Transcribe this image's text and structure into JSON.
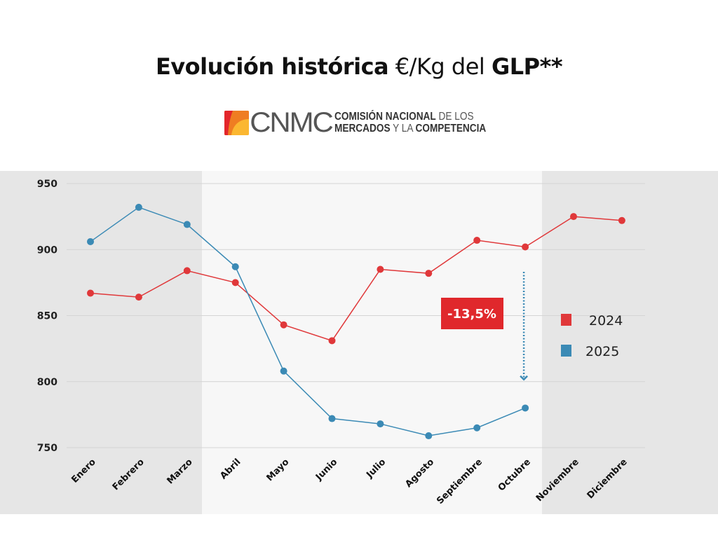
{
  "title": {
    "bold1": "Evolución histórica",
    "normal": "€/Kg del",
    "bold2": "GLP**"
  },
  "logo": {
    "acronym": "CNMC",
    "line1_bold": "COMISIÓN NACIONAL",
    "line1_light": "DE LOS",
    "line2_bold": "MERCADOS",
    "line2_light": "Y LA",
    "line2_bold2": "COMPETENCIA"
  },
  "colors": {
    "s2024": "#e0383a",
    "s2025": "#3b8ab5",
    "badge": "#e0282c",
    "shade_dark": "#e6e6e6",
    "shade_light": "#f7f7f7"
  },
  "chart_data": {
    "type": "line",
    "title": "Evolución histórica €/Kg del GLP**",
    "categories": [
      "Enero",
      "Febrero",
      "Marzo",
      "Abril",
      "Mayo",
      "Junio",
      "Julio",
      "Agosto",
      "Septiembre",
      "Octubre",
      "Noviembre",
      "Diciembre"
    ],
    "series": [
      {
        "name": "2024",
        "values": [
          867,
          864,
          884,
          875,
          843,
          831,
          885,
          882,
          907,
          902,
          925,
          922
        ]
      },
      {
        "name": "2025",
        "values": [
          906,
          932,
          919,
          887,
          808,
          772,
          768,
          759,
          765,
          780,
          null,
          null
        ]
      }
    ],
    "yticks": [
      950,
      900,
      850,
      800,
      750
    ],
    "ylim": [
      750,
      950
    ],
    "grid": true,
    "legend": "right",
    "annotation": {
      "label": "-13,5%",
      "category": "Octubre",
      "from": 880,
      "to": 800
    }
  }
}
